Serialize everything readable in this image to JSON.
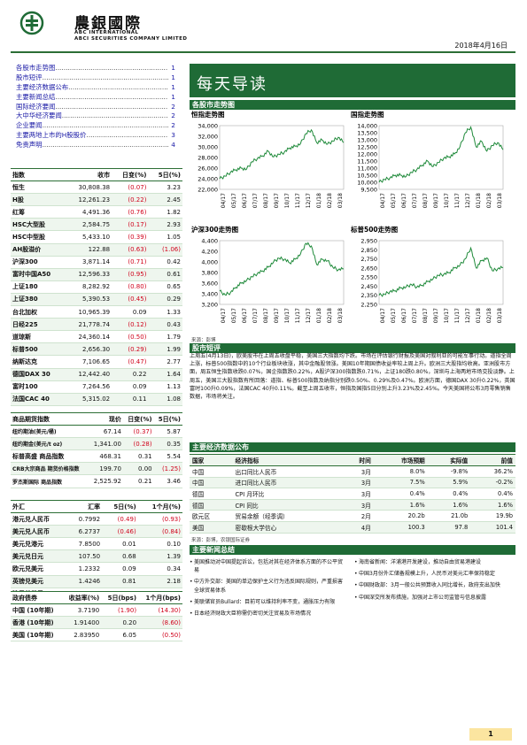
{
  "brand": {
    "cn": "農銀國際",
    "en1": "ABC INTERNATIONAL",
    "en2": "ABCI SECURITIES COMPANY LIMITED"
  },
  "date": "2018年4月16日",
  "toc": [
    {
      "label": "各股市走势图",
      "page": "1"
    },
    {
      "label": "股市短评",
      "page": "1"
    },
    {
      "label": "主要经济数据公布",
      "page": "1"
    },
    {
      "label": "主要新闻总结",
      "page": "1"
    },
    {
      "label": "国际经济要闻",
      "page": "2"
    },
    {
      "label": "大中华经济要闻",
      "page": "2"
    },
    {
      "label": "企业要闻",
      "page": "2"
    },
    {
      "label": "主要两地上市的H股股价",
      "page": "3"
    },
    {
      "label": "免责声明",
      "page": "4"
    }
  ],
  "indices": {
    "headers": [
      "指数",
      "收市",
      "日变(%)",
      "5日(%)"
    ],
    "rows": [
      [
        "恒生",
        "30,808.38",
        "(0.07)",
        "3.23"
      ],
      [
        "H股",
        "12,261.23",
        "(0.22)",
        "2.45"
      ],
      [
        "红筹",
        "4,491.36",
        "(0.76)",
        "1.82"
      ],
      [
        "HSC大型股",
        "2,584.75",
        "(0.17)",
        "2.93"
      ],
      [
        "HSC中型股",
        "5,433.10",
        "(0.39)",
        "1.05"
      ],
      [
        "AH股溢价",
        "122.88",
        "(0.63)",
        "(1.06)"
      ],
      [
        "沪深300",
        "3,871.14",
        "(0.71)",
        "0.42"
      ],
      [
        "富时中国A50",
        "12,596.33",
        "(0.95)",
        "0.61"
      ],
      [
        "上证180",
        "8,282.92",
        "(0.80)",
        "0.65"
      ],
      [
        "上证380",
        "5,390.53",
        "(0.45)",
        "0.29"
      ],
      [
        "台北加权",
        "10,965.39",
        "0.09",
        "1.33"
      ],
      [
        "日经225",
        "21,778.74",
        "(0.12)",
        "0.43"
      ],
      [
        "道琼斯",
        "24,360.14",
        "(0.50)",
        "1.79"
      ],
      [
        "标普500",
        "2,656.30",
        "(0.29)",
        "1.99"
      ],
      [
        "纳斯达克",
        "7,106.65",
        "(0.47)",
        "2.77"
      ],
      [
        "德国DAX 30",
        "12,442.40",
        "0.22",
        "1.64"
      ],
      [
        "富时100",
        "7,264.56",
        "0.09",
        "1.13"
      ],
      [
        "法国CAC 40",
        "5,315.02",
        "0.11",
        "1.08"
      ]
    ]
  },
  "commodities": {
    "headers": [
      "商品期货指数",
      "现价",
      "日变(%)",
      "5日(%)"
    ],
    "rows": [
      [
        "纽约期油(美元/桶)",
        "67.14",
        "(0.37)",
        "5.87"
      ],
      [
        "纽约期金(美元/t oz)",
        "1,341.00",
        "(0.28)",
        "0.35"
      ],
      [
        "标普高盛 商品指数",
        "468.31",
        "0.31",
        "5.54"
      ],
      [
        "CRB大宗商品 期货价格指数",
        "199.70",
        "0.00",
        "(1.25)"
      ],
      [
        "罗杰斯国际 商品指数",
        "2,525.92",
        "0.21",
        "3.46"
      ]
    ]
  },
  "fx": {
    "headers": [
      "外汇",
      "汇率",
      "5日(%)",
      "1个月(%)"
    ],
    "rows": [
      [
        "港元兑人民币",
        "0.7992",
        "(0.49)",
        "(0.93)"
      ],
      [
        "美元兑人民币",
        "6.2737",
        "(0.46)",
        "(0.84)"
      ],
      [
        "美元兑港元",
        "7.8500",
        "0.01",
        "0.10"
      ],
      [
        "美元兑日元",
        "107.50",
        "0.68",
        "1.39"
      ],
      [
        "欧元兑美元",
        "1.2332",
        "0.09",
        "0.34"
      ],
      [
        "英镑兑美元",
        "1.4246",
        "0.81",
        "2.18"
      ],
      [
        "澳元兑美元",
        "0.7775",
        "1.01",
        "0.80"
      ]
    ]
  },
  "bonds": {
    "headers": [
      "政府债券",
      "收益率(%)",
      "5日(bps)",
      "1个月(bps)"
    ],
    "rows": [
      [
        "中国 (10年期)",
        "3.7190",
        "(1.90)",
        "(14.30)"
      ],
      [
        "香港 (10年期)",
        "1.91400",
        "0.20",
        "(8.60)"
      ],
      [
        "美国 (10年期)",
        "2.83950",
        "6.05",
        "(0.50)"
      ]
    ]
  },
  "banner": "每天导读",
  "charts_section": "各股市走势图",
  "charts": [
    {
      "title": "恒指走势图",
      "type": "line",
      "ylim": [
        22000,
        34000
      ],
      "yticks": [
        "34,000",
        "32,000",
        "30,000",
        "28,000",
        "26,000",
        "24,000",
        "22,000"
      ],
      "xticks": [
        "04/17",
        "05/17",
        "06/17",
        "07/17",
        "08/17",
        "09/17",
        "10/17",
        "11/17",
        "12/17",
        "01/18",
        "02/18",
        "03/18"
      ],
      "values": [
        24000,
        24500,
        25200,
        25700,
        26000,
        25800,
        27200,
        27800,
        28300,
        29200,
        28100,
        28600,
        29000,
        29800,
        30100,
        30600,
        32500,
        33200,
        30800,
        31300,
        30500,
        31100,
        31800,
        30800
      ]
    },
    {
      "title": "国指走势图",
      "type": "line",
      "ylim": [
        9500,
        14000
      ],
      "yticks": [
        "14,000",
        "13,500",
        "13,000",
        "12,500",
        "12,000",
        "11,500",
        "11,000",
        "10,500",
        "10,000",
        "9,500"
      ],
      "xticks": [
        "04/17",
        "05/17",
        "06/17",
        "07/17",
        "08/17",
        "09/17",
        "10/17",
        "11/17",
        "12/17",
        "01/18",
        "02/18",
        "03/18"
      ],
      "values": [
        10000,
        10200,
        10300,
        10500,
        10500,
        10400,
        10700,
        10900,
        11200,
        11500,
        11100,
        11400,
        11700,
        11800,
        12000,
        12500,
        13500,
        13900,
        12500,
        12900,
        12200,
        12600,
        12800,
        12300
      ]
    },
    {
      "title": "沪深300走势图",
      "type": "line",
      "ylim": [
        3200,
        4400
      ],
      "yticks": [
        "4,400",
        "4,200",
        "4,000",
        "3,800",
        "3,600",
        "3,400",
        "3,200"
      ],
      "xticks": [
        "04/17",
        "05/17",
        "06/17",
        "07/17",
        "08/17",
        "09/17",
        "10/17",
        "11/17",
        "12/17",
        "01/18",
        "02/18",
        "03/18"
      ],
      "values": [
        3450,
        3380,
        3420,
        3520,
        3600,
        3650,
        3720,
        3780,
        3830,
        3900,
        4000,
        4070,
        4050,
        3980,
        4050,
        4150,
        4350,
        4300,
        3950,
        4050,
        4020,
        3900,
        3850,
        3870
      ]
    },
    {
      "title": "标普500走势图",
      "type": "line",
      "ylim": [
        2250,
        2950
      ],
      "yticks": [
        "2,950",
        "2,850",
        "2,750",
        "2,650",
        "2,550",
        "2,450",
        "2,350",
        "2,250"
      ],
      "xticks": [
        "04/17",
        "05/17",
        "06/17",
        "07/17",
        "08/17",
        "09/17",
        "10/17",
        "11/17",
        "12/17",
        "01/18",
        "02/18",
        "03/18"
      ],
      "values": [
        2350,
        2360,
        2390,
        2400,
        2430,
        2440,
        2470,
        2440,
        2460,
        2500,
        2530,
        2570,
        2580,
        2600,
        2650,
        2680,
        2750,
        2870,
        2650,
        2730,
        2760,
        2620,
        2640,
        2656
      ]
    }
  ],
  "charts_src": "来源：彭博",
  "news_section": "股市短评",
  "news_text": "上周五(4月13日)，欧美股市在上周五收盘平稳，美国三大指数均下跌。市场在评估银行财报及美国对叙利亚的可能军事行动。道指全周上涨，标普500指数中的10个行业板块收涨，其中金融股领涨。美国10年期国债收益率较上周上升。欧洲三大股指均收高。亚洲股市方面，周五恒生指数收跌0.07%，国企指数跌0.22%，A股沪深300指数跌0.71%，上证180跌0.80%，深圳与上海两地市场交投淡静。上周五，美国三大股指数有所回落：道指、标普500指数及纳指分别跌0.50%、0.29%及0.47%。欧洲方面，德国DAX 30升0.22%，英国富时100升0.09%，法国CAC 40升0.11%。截至上周五收市，恒指及国指5日分别上升3.23%及2.45%。今天美国将公布3月零售销售数据，市场将关注。",
  "econ_section": "主要经济数据公布",
  "econ": {
    "headers": [
      "国家",
      "经济指标",
      "时间",
      "市场预期",
      "实际值",
      "前值"
    ],
    "rows": [
      [
        "中国",
        "出口同比人民币",
        "3月",
        "8.0%",
        "-9.8%",
        "36.2%"
      ],
      [
        "中国",
        "进口同比人民币",
        "3月",
        "7.5%",
        "5.9%",
        "-0.2%"
      ],
      [
        "德国",
        "CPI 月环比",
        "3月",
        "0.4%",
        "0.4%",
        "0.4%"
      ],
      [
        "德国",
        "CPI 同比",
        "3月",
        "1.6%",
        "1.6%",
        "1.6%"
      ],
      [
        "欧元区",
        "贸易余额（经季调）",
        "2月",
        "20.2b",
        "21.0b",
        "19.9b"
      ],
      [
        "美国",
        "密歇根大学信心",
        "4月",
        "100.3",
        "97.8",
        "101.4"
      ]
    ]
  },
  "econ_src": "来源：彭博，农银国际证券",
  "hl_section": "主要新闻总结",
  "headlines_left": [
    "美国推动对中国提起诉讼，包括对其在经济体系方面的不公平贸易",
    "中方外交部：美国的单边保护主义行为违反国际规则，严重损害全球贸易体系",
    "美联储官员Bullard：目前可以维持利率不变，通胀压力有限",
    "日本经济财政大臣称需仍密切关注贸易及市场情况"
  ],
  "headlines_right": [
    "海南省新闻：洋浦港开发建设，推动自由贸易港建设",
    "中国3月份外汇储备规模上升，人民币对美元汇率保持稳定",
    "中国财政部：3月一般公共预算收入同比增长，政府支出加快",
    "中国深交所发布措施，加强对上市公司监管与信息披露"
  ],
  "page": "1"
}
